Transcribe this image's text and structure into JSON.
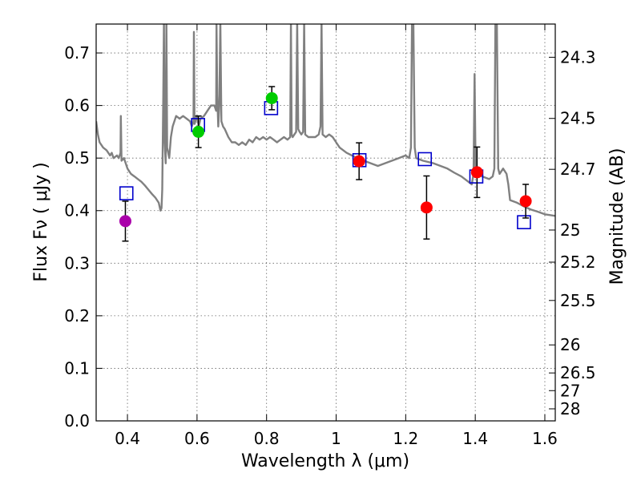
{
  "chart_data": {
    "type": "scatter",
    "xlabel": "Wavelength  λ (μm)",
    "ylabel": "Flux  Fν  ( μJy )",
    "ylabel_right": "Magnitude (AB)",
    "xlim": [
      0.31,
      1.63
    ],
    "ylim": [
      0.0,
      0.755
    ],
    "grid": true,
    "xticks": [
      {
        "value": 0.4,
        "label": "0.4"
      },
      {
        "value": 0.6,
        "label": "0.6"
      },
      {
        "value": 0.8,
        "label": "0.8"
      },
      {
        "value": 1.0,
        "label": "1"
      },
      {
        "value": 1.2,
        "label": "1.2"
      },
      {
        "value": 1.4,
        "label": "1.4"
      },
      {
        "value": 1.6,
        "label": "1.6"
      }
    ],
    "yticks": [
      {
        "value": 0.0,
        "label": "0.0"
      },
      {
        "value": 0.1,
        "label": "0.1"
      },
      {
        "value": 0.2,
        "label": "0.2"
      },
      {
        "value": 0.3,
        "label": "0.3"
      },
      {
        "value": 0.4,
        "label": "0.4"
      },
      {
        "value": 0.5,
        "label": "0.5"
      },
      {
        "value": 0.6,
        "label": "0.6"
      },
      {
        "value": 0.7,
        "label": "0.7"
      }
    ],
    "mag_ticks": [
      {
        "mag": 24.3,
        "label": "24.3"
      },
      {
        "mag": 24.5,
        "label": "24.5"
      },
      {
        "mag": 24.7,
        "label": "24.7"
      },
      {
        "mag": 25.0,
        "label": "25"
      },
      {
        "mag": 25.2,
        "label": "25.2"
      },
      {
        "mag": 25.5,
        "label": "25.5"
      },
      {
        "mag": 26.0,
        "label": "26"
      },
      {
        "mag": 26.5,
        "label": "26.5"
      },
      {
        "mag": 27.0,
        "label": "27"
      },
      {
        "mag": 28.0,
        "label": "28"
      }
    ],
    "observed": [
      {
        "x": 0.394,
        "y": 0.38,
        "err": 0.038,
        "color": "#aa00aa"
      },
      {
        "x": 0.604,
        "y": 0.55,
        "err": 0.03,
        "color": "#00cc00"
      },
      {
        "x": 0.815,
        "y": 0.614,
        "err": 0.022,
        "color": "#00cc00"
      },
      {
        "x": 1.066,
        "y": 0.494,
        "err": 0.035,
        "color": "#ff0000"
      },
      {
        "x": 1.26,
        "y": 0.406,
        "err": 0.06,
        "color": "#ff0000"
      },
      {
        "x": 1.405,
        "y": 0.473,
        "err": 0.048,
        "color": "#ff0000"
      },
      {
        "x": 1.545,
        "y": 0.418,
        "err": 0.032,
        "color": "#ff0000"
      }
    ],
    "model_photometry": [
      {
        "x": 0.397,
        "y": 0.433
      },
      {
        "x": 0.603,
        "y": 0.563
      },
      {
        "x": 0.813,
        "y": 0.595
      },
      {
        "x": 1.067,
        "y": 0.496
      },
      {
        "x": 1.255,
        "y": 0.498
      },
      {
        "x": 1.403,
        "y": 0.465
      },
      {
        "x": 1.54,
        "y": 0.378
      }
    ],
    "sed_model": [
      [
        0.31,
        0.57
      ],
      [
        0.315,
        0.545
      ],
      [
        0.32,
        0.53
      ],
      [
        0.33,
        0.52
      ],
      [
        0.34,
        0.515
      ],
      [
        0.35,
        0.505
      ],
      [
        0.355,
        0.51
      ],
      [
        0.36,
        0.5
      ],
      [
        0.37,
        0.505
      ],
      [
        0.375,
        0.5
      ],
      [
        0.38,
        0.51
      ],
      [
        0.381,
        0.58
      ],
      [
        0.383,
        0.495
      ],
      [
        0.39,
        0.5
      ],
      [
        0.395,
        0.49
      ],
      [
        0.4,
        0.48
      ],
      [
        0.41,
        0.47
      ],
      [
        0.42,
        0.465
      ],
      [
        0.43,
        0.46
      ],
      [
        0.44,
        0.455
      ],
      [
        0.45,
        0.448
      ],
      [
        0.46,
        0.44
      ],
      [
        0.47,
        0.432
      ],
      [
        0.48,
        0.425
      ],
      [
        0.49,
        0.415
      ],
      [
        0.495,
        0.4
      ],
      [
        0.498,
        0.405
      ],
      [
        0.5,
        0.44
      ],
      [
        0.503,
        0.62
      ],
      [
        0.505,
        0.76
      ],
      [
        0.507,
        0.53
      ],
      [
        0.51,
        0.49
      ],
      [
        0.512,
        0.76
      ],
      [
        0.514,
        0.52
      ],
      [
        0.52,
        0.5
      ],
      [
        0.525,
        0.54
      ],
      [
        0.53,
        0.56
      ],
      [
        0.54,
        0.58
      ],
      [
        0.55,
        0.575
      ],
      [
        0.56,
        0.58
      ],
      [
        0.57,
        0.575
      ],
      [
        0.58,
        0.57
      ],
      [
        0.585,
        0.56
      ],
      [
        0.59,
        0.57
      ],
      [
        0.591,
        0.74
      ],
      [
        0.593,
        0.565
      ],
      [
        0.6,
        0.58
      ],
      [
        0.605,
        0.56
      ],
      [
        0.61,
        0.575
      ],
      [
        0.62,
        0.58
      ],
      [
        0.63,
        0.59
      ],
      [
        0.64,
        0.6
      ],
      [
        0.65,
        0.6
      ],
      [
        0.655,
        0.59
      ],
      [
        0.656,
        0.76
      ],
      [
        0.658,
        0.62
      ],
      [
        0.661,
        0.56
      ],
      [
        0.664,
        0.6
      ],
      [
        0.667,
        0.76
      ],
      [
        0.67,
        0.57
      ],
      [
        0.675,
        0.56
      ],
      [
        0.68,
        0.555
      ],
      [
        0.69,
        0.54
      ],
      [
        0.7,
        0.53
      ],
      [
        0.71,
        0.53
      ],
      [
        0.72,
        0.525
      ],
      [
        0.73,
        0.53
      ],
      [
        0.74,
        0.525
      ],
      [
        0.75,
        0.535
      ],
      [
        0.76,
        0.53
      ],
      [
        0.77,
        0.54
      ],
      [
        0.78,
        0.535
      ],
      [
        0.79,
        0.54
      ],
      [
        0.8,
        0.535
      ],
      [
        0.81,
        0.54
      ],
      [
        0.82,
        0.535
      ],
      [
        0.83,
        0.53
      ],
      [
        0.84,
        0.535
      ],
      [
        0.85,
        0.54
      ],
      [
        0.86,
        0.535
      ],
      [
        0.868,
        0.54
      ],
      [
        0.87,
        0.76
      ],
      [
        0.872,
        0.545
      ],
      [
        0.875,
        0.54
      ],
      [
        0.88,
        0.545
      ],
      [
        0.885,
        0.55
      ],
      [
        0.888,
        0.76
      ],
      [
        0.891,
        0.555
      ],
      [
        0.895,
        0.55
      ],
      [
        0.9,
        0.545
      ],
      [
        0.905,
        0.55
      ],
      [
        0.908,
        0.76
      ],
      [
        0.911,
        0.545
      ],
      [
        0.92,
        0.54
      ],
      [
        0.94,
        0.54
      ],
      [
        0.95,
        0.545
      ],
      [
        0.955,
        0.56
      ],
      [
        0.958,
        0.76
      ],
      [
        0.961,
        0.545
      ],
      [
        0.97,
        0.54
      ],
      [
        0.98,
        0.545
      ],
      [
        0.99,
        0.54
      ],
      [
        1.0,
        0.53
      ],
      [
        1.01,
        0.52
      ],
      [
        1.03,
        0.51
      ],
      [
        1.06,
        0.5
      ],
      [
        1.08,
        0.495
      ],
      [
        1.1,
        0.49
      ],
      [
        1.12,
        0.485
      ],
      [
        1.14,
        0.49
      ],
      [
        1.16,
        0.495
      ],
      [
        1.18,
        0.5
      ],
      [
        1.2,
        0.505
      ],
      [
        1.21,
        0.5
      ],
      [
        1.215,
        0.52
      ],
      [
        1.218,
        0.76
      ],
      [
        1.222,
        0.76
      ],
      [
        1.226,
        0.52
      ],
      [
        1.23,
        0.5
      ],
      [
        1.25,
        0.495
      ],
      [
        1.28,
        0.49
      ],
      [
        1.3,
        0.485
      ],
      [
        1.32,
        0.48
      ],
      [
        1.34,
        0.472
      ],
      [
        1.36,
        0.465
      ],
      [
        1.38,
        0.455
      ],
      [
        1.39,
        0.45
      ],
      [
        1.395,
        0.47
      ],
      [
        1.398,
        0.66
      ],
      [
        1.401,
        0.48
      ],
      [
        1.41,
        0.47
      ],
      [
        1.42,
        0.465
      ],
      [
        1.44,
        0.46
      ],
      [
        1.45,
        0.465
      ],
      [
        1.455,
        0.48
      ],
      [
        1.458,
        0.76
      ],
      [
        1.462,
        0.76
      ],
      [
        1.466,
        0.48
      ],
      [
        1.47,
        0.47
      ],
      [
        1.48,
        0.48
      ],
      [
        1.49,
        0.47
      ],
      [
        1.495,
        0.45
      ],
      [
        1.5,
        0.42
      ],
      [
        1.52,
        0.415
      ],
      [
        1.54,
        0.408
      ],
      [
        1.56,
        0.402
      ],
      [
        1.58,
        0.398
      ],
      [
        1.6,
        0.393
      ],
      [
        1.63,
        0.39
      ]
    ]
  }
}
